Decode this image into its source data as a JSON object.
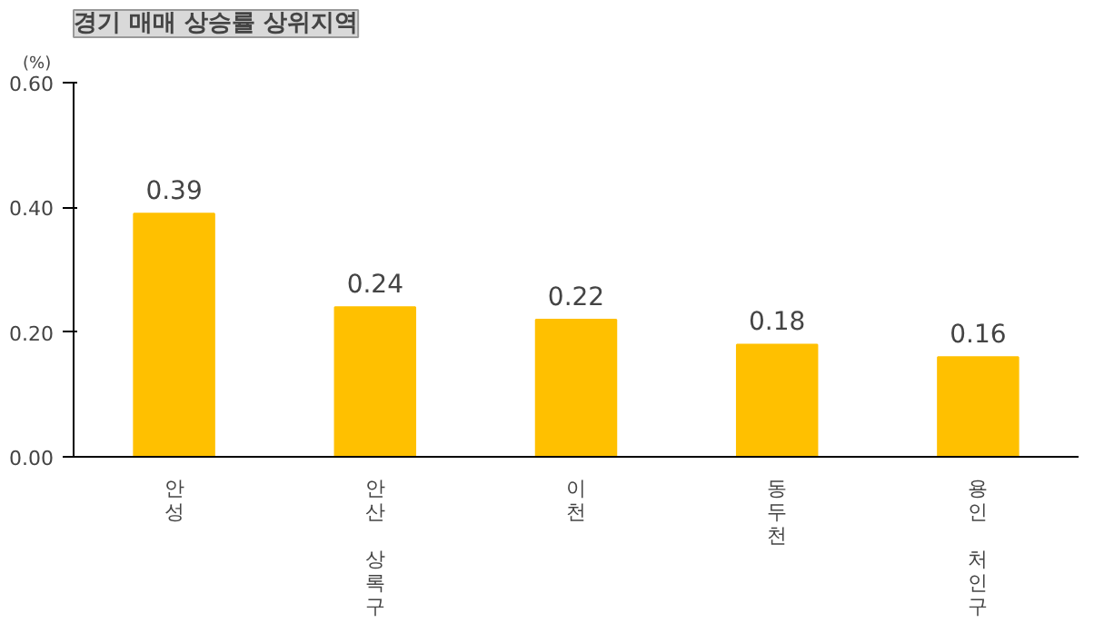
{
  "chart_data": {
    "type": "bar",
    "title": "경기 매매 상승률 상위지역",
    "ylabel": "(%)",
    "categories": [
      "안성",
      "안산 상록구",
      "이천",
      "동두천",
      "용인 처인구"
    ],
    "values": [
      0.39,
      0.24,
      0.22,
      0.18,
      0.16
    ],
    "color": "#ffc000",
    "ylim": [
      0,
      0.6
    ],
    "yticks": [
      {
        "value": 0,
        "label": "0.00"
      },
      {
        "value": 0.2,
        "label": "0.20"
      },
      {
        "value": 0.4,
        "label": "0.40"
      },
      {
        "value": 0.6,
        "label": "0.60"
      }
    ],
    "data_labels": true,
    "grid": false
  }
}
